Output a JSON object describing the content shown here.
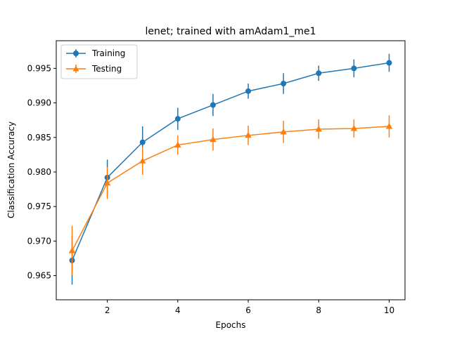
{
  "chart_data": {
    "type": "line",
    "title": "lenet; trained with amAdam1_me1",
    "xlabel": "Epochs",
    "ylabel": "Classification Accuracy",
    "xlim": [
      0.55,
      10.45
    ],
    "ylim": [
      0.9615,
      0.999
    ],
    "x_ticks": [
      2,
      4,
      6,
      8,
      10
    ],
    "y_ticks": [
      0.965,
      0.97,
      0.975,
      0.98,
      0.985,
      0.99,
      0.995
    ],
    "x_tick_labels": [
      "2",
      "4",
      "6",
      "8",
      "10"
    ],
    "y_tick_labels": [
      "0.965",
      "0.970",
      "0.975",
      "0.980",
      "0.985",
      "0.990",
      "0.995"
    ],
    "grid": false,
    "legend_position": "top-left",
    "x": [
      1,
      2,
      3,
      4,
      5,
      6,
      7,
      8,
      9,
      10
    ],
    "series": [
      {
        "name": "Training",
        "marker": "circle",
        "color": "#1f77b4",
        "values": [
          0.9672,
          0.9792,
          0.9843,
          0.9877,
          0.9897,
          0.9917,
          0.9928,
          0.9943,
          0.995,
          0.9958
        ],
        "errors": [
          0.0035,
          0.0026,
          0.0023,
          0.0016,
          0.0016,
          0.0011,
          0.0015,
          0.0011,
          0.0013,
          0.0013
        ]
      },
      {
        "name": "Testing",
        "marker": "triangle",
        "color": "#ff7f0e",
        "values": [
          0.9686,
          0.9784,
          0.9816,
          0.9839,
          0.9847,
          0.9853,
          0.9858,
          0.9862,
          0.9863,
          0.9866
        ],
        "errors": [
          0.0036,
          0.0023,
          0.002,
          0.0014,
          0.0016,
          0.0014,
          0.0016,
          0.0014,
          0.0013,
          0.0016
        ]
      }
    ]
  }
}
